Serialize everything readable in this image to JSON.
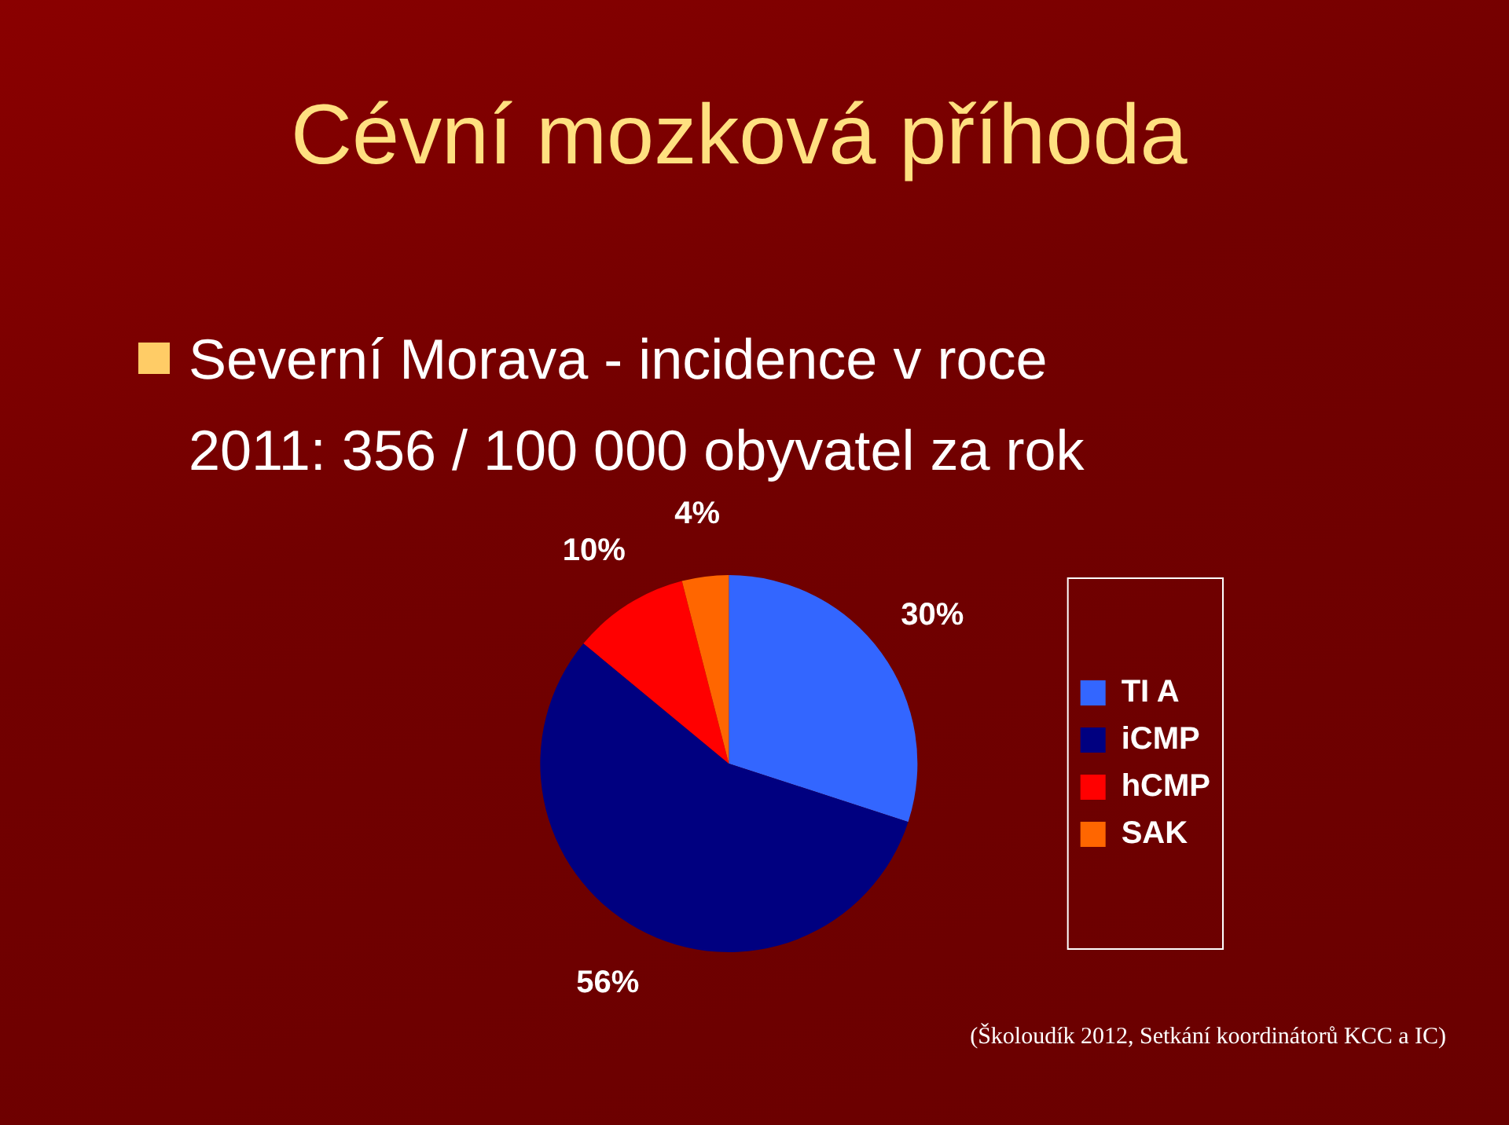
{
  "chart_data": {
    "type": "pie",
    "title": "Cévní mozková příhoda",
    "subtitle": "Severní Morava - incidence v roce 2011: 356 / 100 000 obyvatel za rok",
    "categories": [
      "TI A",
      "iCMP",
      "hCMP",
      "SAK"
    ],
    "values": [
      30,
      56,
      10,
      4
    ],
    "colors": [
      "#3366ff",
      "#000080",
      "#ff0000",
      "#ff6600"
    ],
    "value_labels": [
      "30%",
      "56%",
      "10%",
      "4%"
    ],
    "legend": "right",
    "annotations": [
      "(Školoudík 2012, Setkání koordinátorů KCC a IC)"
    ]
  }
}
